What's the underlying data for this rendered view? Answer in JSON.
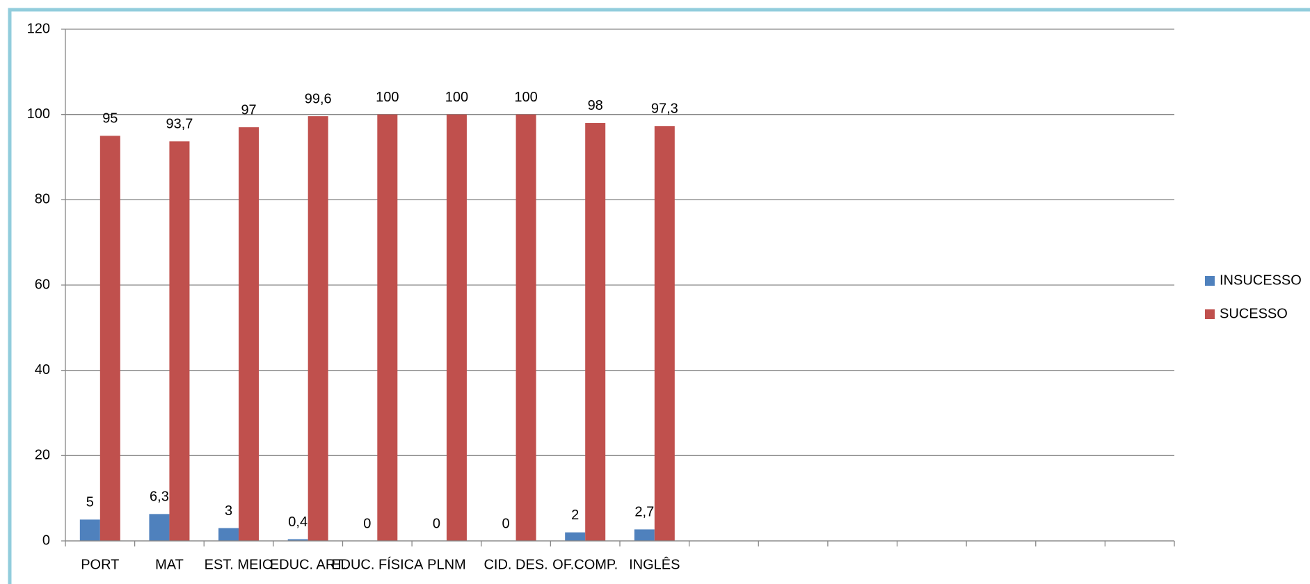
{
  "chart_data": {
    "type": "bar",
    "categories": [
      "PORT",
      "MAT",
      "EST. MEIO",
      "EDUC. ART.",
      "EDUC. FÍSICA",
      "PLNM",
      "CID. DES.",
      "OF.COMP.",
      "INGLÊS",
      null,
      null,
      null,
      null,
      null,
      null,
      null
    ],
    "series": [
      {
        "name": "INSUCESSO",
        "color": "#4f81bd",
        "values": [
          5,
          6.3,
          3,
          0.4,
          0,
          0,
          0,
          2,
          2.7,
          null,
          null,
          null,
          null,
          null,
          null,
          null
        ],
        "value_labels": [
          "5",
          "6,3",
          "3",
          "0,4",
          "0",
          "0",
          "0",
          "2",
          "2,7",
          null,
          null,
          null,
          null,
          null,
          null,
          null
        ]
      },
      {
        "name": "SUCESSO",
        "color": "#c0504d",
        "values": [
          95,
          93.7,
          97,
          99.6,
          100,
          100,
          100,
          98,
          97.3,
          null,
          null,
          null,
          null,
          null,
          null,
          null
        ],
        "value_labels": [
          "95",
          "93,7",
          "97",
          "99,6",
          "100",
          "100",
          "100",
          "98",
          "97,3",
          null,
          null,
          null,
          null,
          null,
          null,
          null
        ]
      }
    ],
    "ylim": [
      0,
      120
    ],
    "yticks": [
      0,
      20,
      40,
      60,
      80,
      100,
      120
    ],
    "grid": true,
    "legend": "right"
  }
}
